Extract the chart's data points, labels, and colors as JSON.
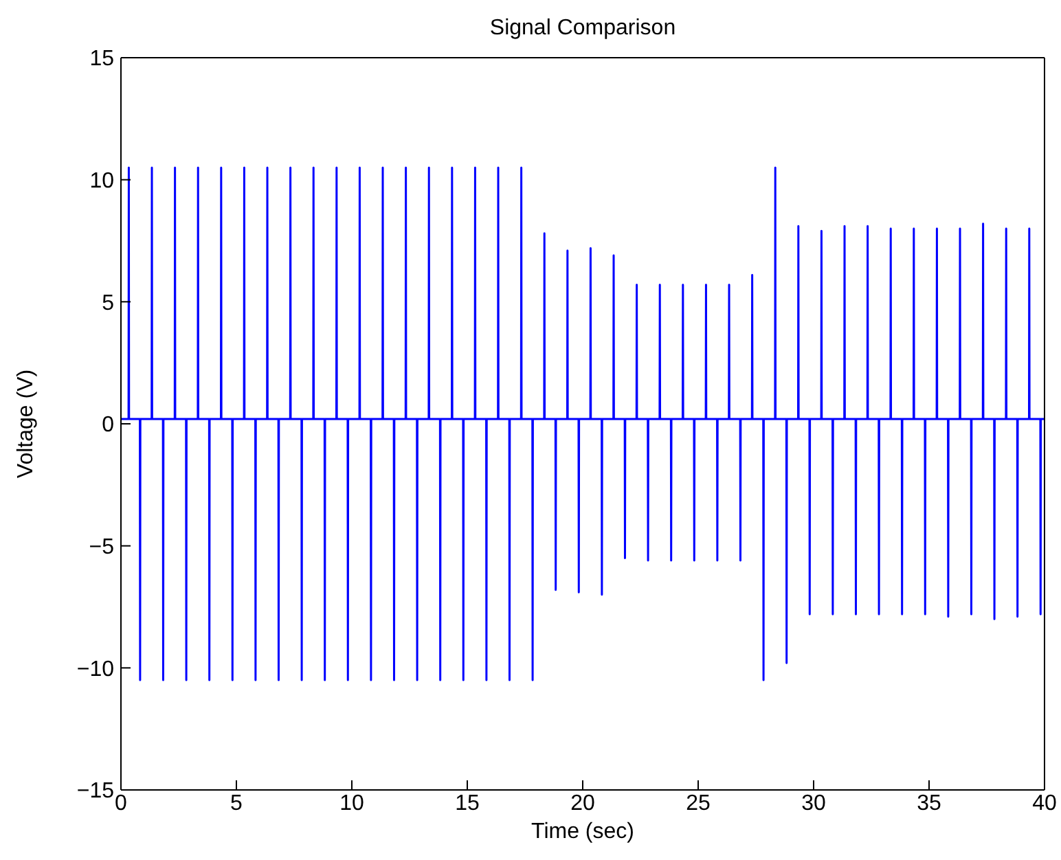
{
  "chart_data": {
    "type": "line",
    "title": "Signal Comparison",
    "xlabel": "Time (sec)",
    "ylabel": "Voltage (V)",
    "xlim": [
      0,
      40
    ],
    "xticks": [
      0,
      5,
      10,
      15,
      20,
      25,
      30,
      35,
      40
    ],
    "ylim": [
      -15,
      15
    ],
    "yticks": [
      -15,
      -10,
      -5,
      0,
      5,
      10,
      15
    ],
    "grid": false,
    "legend": false,
    "marker": "none",
    "line_style": "solid",
    "x": [
      0,
      0.33,
      0.34,
      0.35,
      0.82,
      0.83,
      0.84,
      1.33,
      1.34,
      1.35,
      1.82,
      1.83,
      1.84,
      2.33,
      2.34,
      2.35,
      2.82,
      2.83,
      2.84,
      3.33,
      3.34,
      3.35,
      3.82,
      3.83,
      3.84,
      4.33,
      4.34,
      4.35,
      4.82,
      4.83,
      4.84,
      5.33,
      5.34,
      5.35,
      5.82,
      5.83,
      5.84,
      6.33,
      6.34,
      6.35,
      6.82,
      6.83,
      6.84,
      7.33,
      7.34,
      7.35,
      7.82,
      7.83,
      7.84,
      8.33,
      8.34,
      8.35,
      8.82,
      8.83,
      8.84,
      9.33,
      9.34,
      9.35,
      9.82,
      9.83,
      9.84,
      10.33,
      10.34,
      10.35,
      10.82,
      10.83,
      10.84,
      11.33,
      11.34,
      11.35,
      11.82,
      11.83,
      11.84,
      12.33,
      12.34,
      12.35,
      12.82,
      12.83,
      12.84,
      13.33,
      13.34,
      13.35,
      13.82,
      13.83,
      13.84,
      14.33,
      14.34,
      14.35,
      14.82,
      14.83,
      14.84,
      15.33,
      15.34,
      15.35,
      15.82,
      15.83,
      15.84,
      16.33,
      16.34,
      16.35,
      16.82,
      16.83,
      16.84,
      17.33,
      17.34,
      17.35,
      17.82,
      17.83,
      17.84,
      18.33,
      18.34,
      18.35,
      18.82,
      18.83,
      18.84,
      19.33,
      19.34,
      19.35,
      19.82,
      19.83,
      19.84,
      20.33,
      20.34,
      20.35,
      20.82,
      20.83,
      20.84,
      21.33,
      21.34,
      21.35,
      21.82,
      21.83,
      21.84,
      22.33,
      22.34,
      22.35,
      22.82,
      22.83,
      22.84,
      23.33,
      23.34,
      23.35,
      23.82,
      23.83,
      23.84,
      24.33,
      24.34,
      24.35,
      24.82,
      24.83,
      24.84,
      25.33,
      25.34,
      25.35,
      25.82,
      25.83,
      25.84,
      26.33,
      26.34,
      26.35,
      26.82,
      26.83,
      26.84,
      27.33,
      27.34,
      27.35,
      27.82,
      27.83,
      27.84,
      28.33,
      28.34,
      28.35,
      28.82,
      28.83,
      28.84,
      29.33,
      29.34,
      29.35,
      29.82,
      29.83,
      29.84,
      30.33,
      30.34,
      30.35,
      30.82,
      30.83,
      30.84,
      31.33,
      31.34,
      31.35,
      31.82,
      31.83,
      31.84,
      32.33,
      32.34,
      32.35,
      32.82,
      32.83,
      32.84,
      33.33,
      33.34,
      33.35,
      33.82,
      33.83,
      33.84,
      34.33,
      34.34,
      34.35,
      34.82,
      34.83,
      34.84,
      35.33,
      35.34,
      35.35,
      35.82,
      35.83,
      35.84,
      36.33,
      36.34,
      36.35,
      36.82,
      36.83,
      36.84,
      37.33,
      37.34,
      37.35,
      37.82,
      37.83,
      37.84,
      38.33,
      38.34,
      38.35,
      38.82,
      38.83,
      38.84,
      39.33,
      39.34,
      39.35,
      39.82,
      39.83,
      39.84,
      40
    ],
    "series": [
      {
        "color": "#0000ff",
        "values": [
          0.2,
          0.2,
          10.5,
          0.2,
          0.2,
          -10.5,
          0.2,
          0.2,
          10.5,
          0.2,
          0.2,
          -10.5,
          0.2,
          0.2,
          10.5,
          0.2,
          0.2,
          -10.5,
          0.2,
          0.2,
          10.5,
          0.2,
          0.2,
          -10.5,
          0.2,
          0.2,
          10.5,
          0.2,
          0.2,
          -10.5,
          0.2,
          0.2,
          10.5,
          0.2,
          0.2,
          -10.5,
          0.2,
          0.2,
          10.5,
          0.2,
          0.2,
          -10.5,
          0.2,
          0.2,
          10.5,
          0.2,
          0.2,
          -10.5,
          0.2,
          0.2,
          10.5,
          0.2,
          0.2,
          -10.5,
          0.2,
          0.2,
          10.5,
          0.2,
          0.2,
          -10.5,
          0.2,
          0.2,
          10.5,
          0.2,
          0.2,
          -10.5,
          0.2,
          0.2,
          10.5,
          0.2,
          0.2,
          -10.5,
          0.2,
          0.2,
          10.5,
          0.2,
          0.2,
          -10.5,
          0.2,
          0.2,
          10.5,
          0.2,
          0.2,
          -10.5,
          0.2,
          0.2,
          10.5,
          0.2,
          0.2,
          -10.5,
          0.2,
          0.2,
          10.5,
          0.2,
          0.2,
          -10.5,
          0.2,
          0.2,
          10.5,
          0.2,
          0.2,
          -10.5,
          0.2,
          0.2,
          10.5,
          0.2,
          0.2,
          -10.5,
          0.2,
          0.2,
          7.8,
          0.2,
          0.2,
          -6.8,
          0.2,
          0.2,
          7.1,
          0.2,
          0.2,
          -6.9,
          0.2,
          0.2,
          7.2,
          0.2,
          0.2,
          -7,
          0.2,
          0.2,
          6.9,
          0.2,
          0.2,
          -5.5,
          0.2,
          0.2,
          5.7,
          0.2,
          0.2,
          -5.6,
          0.2,
          0.2,
          5.7,
          0.2,
          0.2,
          -5.6,
          0.2,
          0.2,
          5.7,
          0.2,
          0.2,
          -5.6,
          0.2,
          0.2,
          5.7,
          0.2,
          0.2,
          -5.6,
          0.2,
          0.2,
          5.7,
          0.2,
          0.2,
          -5.6,
          0.2,
          0.2,
          6.1,
          0.2,
          0.2,
          -10.5,
          0.2,
          0.2,
          10.5,
          0.2,
          0.2,
          -9.8,
          0.2,
          0.2,
          8.1,
          0.2,
          0.2,
          -7.8,
          0.2,
          0.2,
          7.9,
          0.2,
          0.2,
          -7.8,
          0.2,
          0.2,
          8.1,
          0.2,
          0.2,
          -7.8,
          0.2,
          0.2,
          8.1,
          0.2,
          0.2,
          -7.8,
          0.2,
          0.2,
          8,
          0.2,
          0.2,
          -7.8,
          0.2,
          0.2,
          8,
          0.2,
          0.2,
          -7.8,
          0.2,
          0.2,
          8,
          0.2,
          0.2,
          -7.9,
          0.2,
          0.2,
          8,
          0.2,
          0.2,
          -7.8,
          0.2,
          0.2,
          8.2,
          0.2,
          0.2,
          -8,
          0.2,
          0.2,
          8,
          0.2,
          0.2,
          -7.9,
          0.2,
          0.2,
          8,
          0.2,
          0.2,
          -7.8,
          0.2,
          0.2
        ]
      }
    ]
  }
}
